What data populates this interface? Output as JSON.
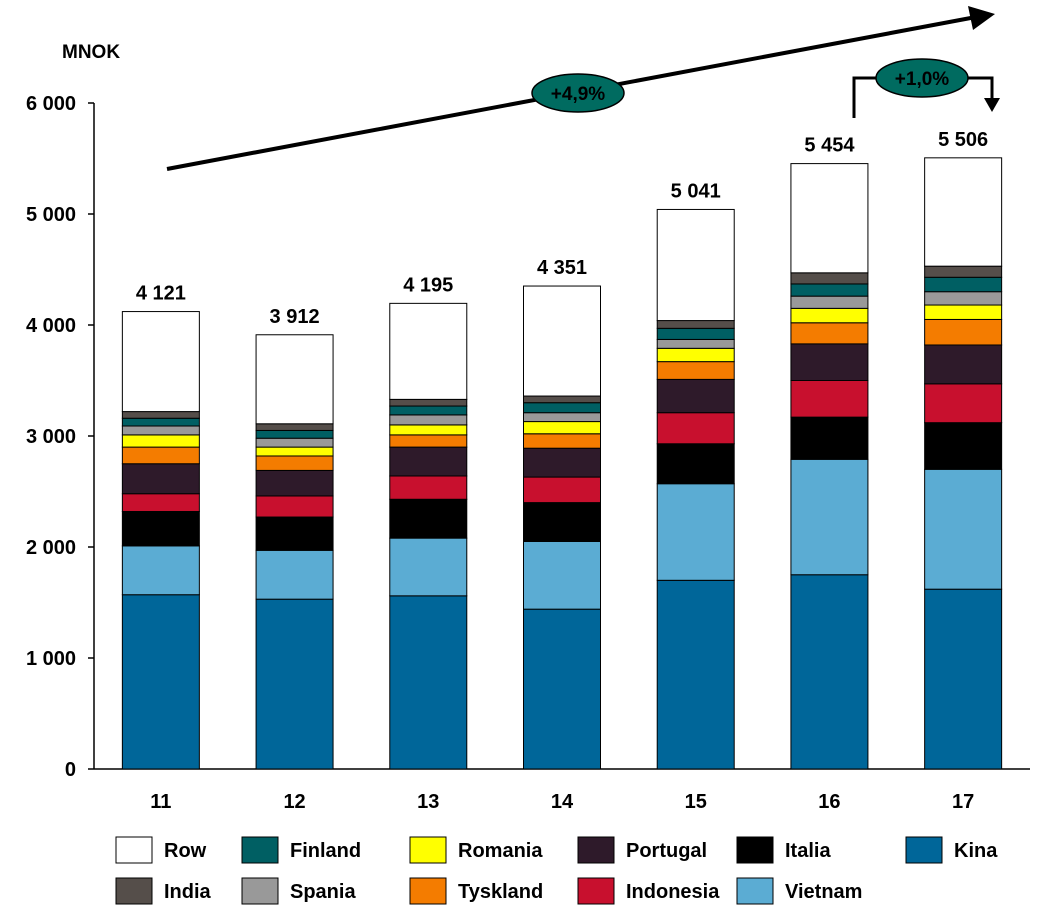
{
  "chart_data": {
    "type": "bar",
    "stacked": true,
    "ylabel": "MNOK",
    "ylim": [
      0,
      6000
    ],
    "yticks": [
      0,
      1000,
      2000,
      3000,
      4000,
      5000,
      6000
    ],
    "ytick_labels": [
      "0",
      "1 000",
      "2 000",
      "3 000",
      "4 000",
      "5 000",
      "6 000"
    ],
    "categories": [
      "11",
      "12",
      "13",
      "14",
      "15",
      "16",
      "17"
    ],
    "totals": [
      4121,
      3912,
      4195,
      4351,
      5041,
      5454,
      5506
    ],
    "total_labels": [
      "4 121",
      "3 912",
      "4 195",
      "4 351",
      "5 041",
      "5 454",
      "5 506"
    ],
    "series": [
      {
        "name": "Kina",
        "color": "#006699",
        "values": [
          1570,
          1530,
          1560,
          1440,
          1700,
          1750,
          1620
        ]
      },
      {
        "name": "Vietnam",
        "color": "#5BACD3",
        "values": [
          440,
          440,
          520,
          610,
          870,
          1040,
          1080
        ]
      },
      {
        "name": "Italia",
        "color": "#000000",
        "values": [
          310,
          300,
          350,
          350,
          360,
          380,
          420
        ]
      },
      {
        "name": "Indonesia",
        "color": "#C8102E",
        "values": [
          160,
          190,
          210,
          230,
          280,
          330,
          350
        ]
      },
      {
        "name": "Portugal",
        "color": "#2E1A2A",
        "values": [
          270,
          230,
          260,
          260,
          300,
          330,
          350
        ]
      },
      {
        "name": "Tyskland",
        "color": "#F47C00",
        "values": [
          150,
          130,
          110,
          130,
          160,
          190,
          230
        ]
      },
      {
        "name": "Romania",
        "color": "#FFFF00",
        "values": [
          110,
          80,
          90,
          110,
          120,
          130,
          130
        ]
      },
      {
        "name": "Spania",
        "color": "#999999",
        "values": [
          80,
          80,
          90,
          80,
          80,
          110,
          120
        ]
      },
      {
        "name": "Finland",
        "color": "#005F63",
        "values": [
          70,
          70,
          80,
          90,
          100,
          110,
          130
        ]
      },
      {
        "name": "India",
        "color": "#554E4A",
        "values": [
          60,
          60,
          60,
          60,
          70,
          100,
          100
        ]
      },
      {
        "name": "Row",
        "color": "#FFFFFF",
        "values": [
          901,
          802,
          865,
          991,
          1001,
          984,
          976
        ]
      }
    ],
    "legend": {
      "placement": "bottom",
      "rows": [
        [
          "Row",
          "Finland",
          "Romania",
          "Portugal",
          "Italia",
          "Kina"
        ],
        [
          "India",
          "Spania",
          "Tyskland",
          "Indonesia",
          "Vietnam"
        ]
      ]
    },
    "annotations": [
      {
        "text": "+4,9%",
        "type": "trend-arrow",
        "from": "11",
        "to": "17",
        "color": "#006B60"
      },
      {
        "text": "+1,0%",
        "type": "bracket-arrow",
        "from": "16",
        "to": "17",
        "color": "#006B60"
      }
    ],
    "grid": false
  }
}
